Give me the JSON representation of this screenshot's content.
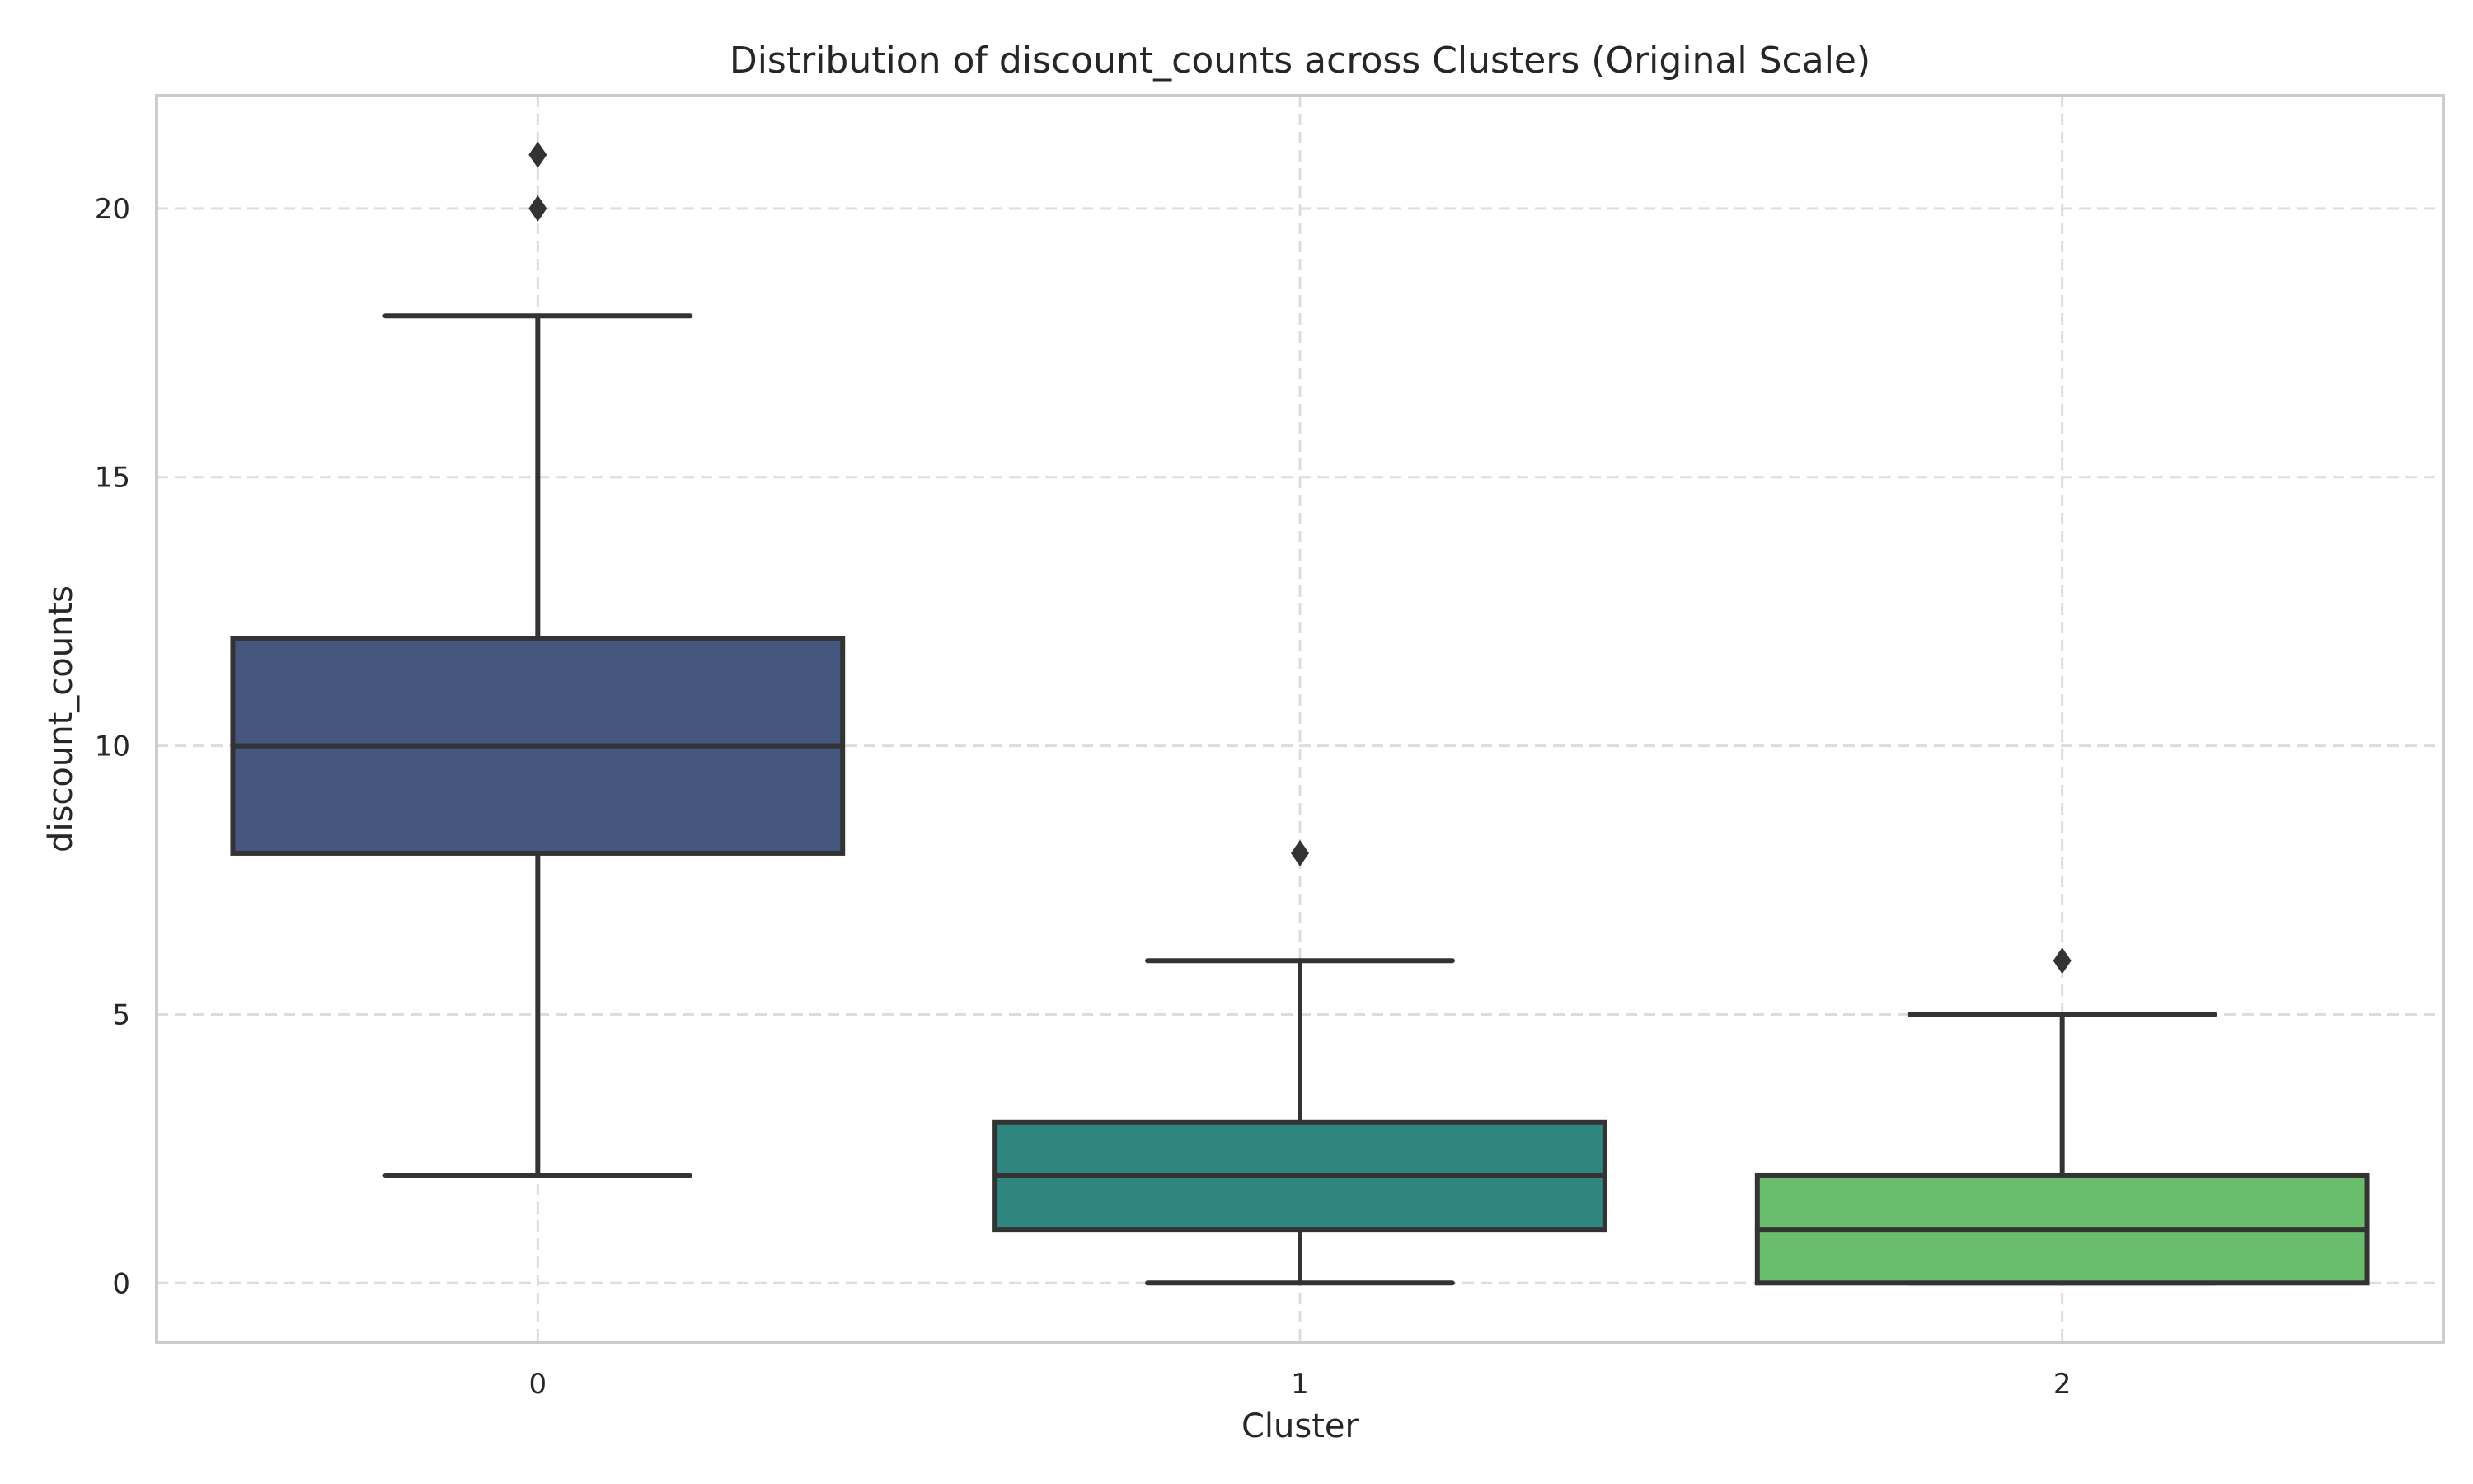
{
  "chart_data": {
    "type": "box",
    "title": "Distribution of discount_counts across Clusters (Original Scale)",
    "xlabel": "Cluster",
    "ylabel": "discount_counts",
    "categories": [
      "0",
      "1",
      "2"
    ],
    "ylim": [
      -1.1,
      22.1
    ],
    "yticks": [
      0,
      5,
      10,
      15,
      20
    ],
    "grid": true,
    "boxes": [
      {
        "category": "0",
        "whisker_low": 2,
        "q1": 8,
        "median": 10,
        "q3": 12,
        "whisker_high": 18,
        "outliers": [
          20,
          21
        ],
        "color": "#46577f"
      },
      {
        "category": "1",
        "whisker_low": 0,
        "q1": 1,
        "median": 2,
        "q3": 3,
        "whisker_high": 6,
        "outliers": [
          8
        ],
        "color": "#2e867f"
      },
      {
        "category": "2",
        "whisker_low": 0,
        "q1": 0,
        "median": 1,
        "q3": 2,
        "whisker_high": 5,
        "outliers": [
          6
        ],
        "color": "#6bbd6e"
      }
    ]
  }
}
